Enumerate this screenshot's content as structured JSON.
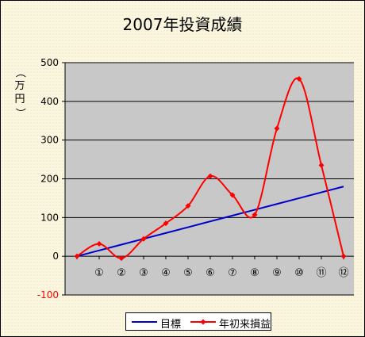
{
  "chart_data": {
    "type": "line",
    "title": "2007年投資成績",
    "ylabel": "（万円）",
    "ylim": [
      -100,
      500
    ],
    "yticks": [
      -100,
      0,
      100,
      200,
      300,
      400,
      500
    ],
    "ytick_labels": [
      "-100",
      "0",
      "100",
      "200",
      "300",
      "400",
      "500"
    ],
    "categories": [
      "",
      "①",
      "②",
      "③",
      "④",
      "⑤",
      "⑥",
      "⑦",
      "⑧",
      "⑨",
      "⑩",
      "⑪",
      "⑫"
    ],
    "grid": true,
    "legend_position": "bottom",
    "series": [
      {
        "name": "目標",
        "color": "#0000cc",
        "marker": "none",
        "smooth": false,
        "values": [
          0,
          15,
          30,
          45,
          60,
          75,
          90,
          105,
          120,
          135,
          150,
          165,
          180
        ]
      },
      {
        "name": "年初来損益",
        "color": "#ff0000",
        "marker": "diamond",
        "smooth": true,
        "values": [
          0,
          32,
          -5,
          45,
          85,
          130,
          207,
          158,
          107,
          330,
          458,
          235,
          0
        ]
      }
    ]
  },
  "colors": {
    "plot_background": "#c8c8c8",
    "gridline": "#000000",
    "negative_tick": "#ff0000"
  }
}
